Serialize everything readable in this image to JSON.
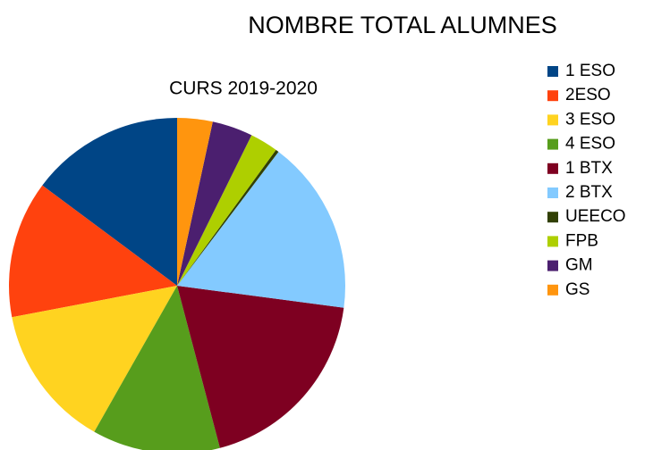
{
  "chart_data": {
    "type": "pie",
    "title": "NOMBRE TOTAL ALUMNES",
    "subtitle": "CURS 2019-2020",
    "direction": "counterclockwise",
    "categories": [
      "1 ESO",
      "2ESO",
      "3 ESO",
      "4 ESO",
      "1 BTX",
      "2 BTX",
      "UEECO",
      "FPB",
      "GM",
      "GS"
    ],
    "values": [
      14.8,
      13.2,
      13.8,
      12.3,
      18.8,
      16.8,
      0.3,
      2.7,
      3.9,
      3.4
    ],
    "colors": [
      "#004586",
      "#ff420e",
      "#ffd320",
      "#579d1c",
      "#7e0021",
      "#83caff",
      "#314004",
      "#aecf00",
      "#4b1f6f",
      "#ff950e"
    ],
    "legend": "right"
  }
}
